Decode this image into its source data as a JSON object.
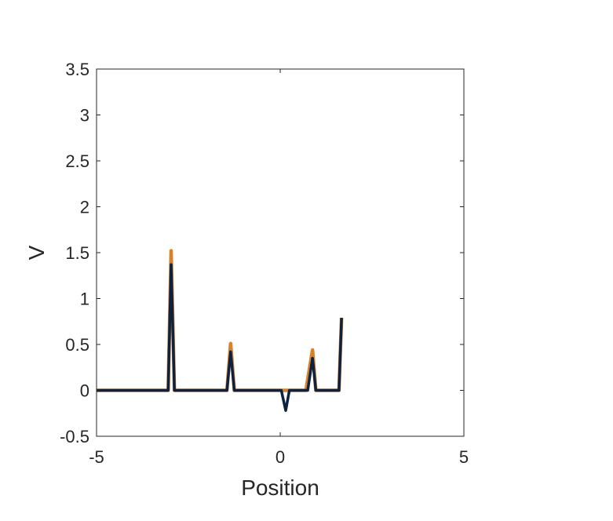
{
  "chart_data": {
    "type": "line",
    "title": "",
    "xlabel": "Position",
    "ylabel": "V",
    "xlim": [
      -5,
      5
    ],
    "ylim": [
      -0.5,
      3.5
    ],
    "xticks": [
      -5,
      0,
      5
    ],
    "xtick_labels": [
      "-5",
      "0",
      "5"
    ],
    "yticks": [
      -0.5,
      0,
      0.5,
      1,
      1.5,
      2,
      2.5,
      3,
      3.5
    ],
    "ytick_labels": [
      "-0.5",
      "0",
      "0.5",
      "1",
      "1.5",
      "2",
      "2.5",
      "3",
      "3.5"
    ],
    "grid": false,
    "legend": "none",
    "box": true,
    "series": [
      {
        "color": "#d9822b",
        "x": [
          -5,
          -3.05,
          -2.97,
          -2.88,
          -1.45,
          -1.35,
          -1.25,
          0.7,
          0.88,
          0.97,
          1.6,
          1.67
        ],
        "y": [
          0,
          0,
          1.52,
          0,
          0,
          0.51,
          0,
          0,
          0.44,
          0,
          0,
          0.79
        ]
      },
      {
        "color": "#0d2240",
        "x": [
          -5,
          -3.05,
          -2.97,
          -2.88,
          -1.45,
          -1.35,
          -1.25,
          0.03,
          0.15,
          0.25,
          0.75,
          0.88,
          0.97,
          1.6,
          1.67
        ],
        "y": [
          0,
          0,
          1.37,
          0,
          0,
          0.42,
          0,
          0,
          -0.22,
          0,
          0,
          0.35,
          0,
          0,
          0.79
        ]
      }
    ]
  }
}
